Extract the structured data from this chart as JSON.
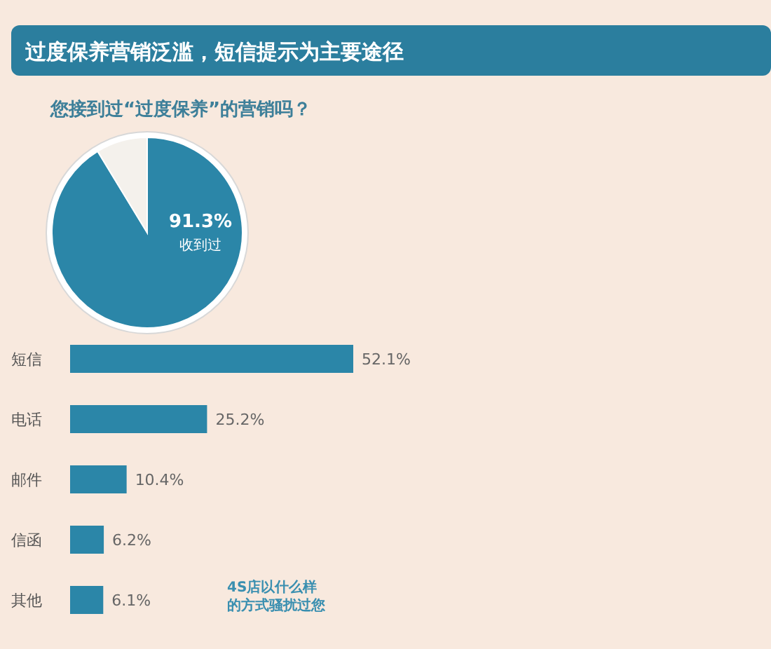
{
  "chart_data": [
    {
      "type": "pie",
      "title": "过度保养营销泛滥，短信提示为主要途径",
      "subtitle": "您接到过“过度保养”的营销吗？",
      "categories": [
        "收到过",
        null
      ],
      "values": [
        91.3,
        8.7
      ],
      "colors": [
        "#2b86a8",
        "#f4f1ec"
      ],
      "value_labels": [
        "91.3%",
        null
      ]
    },
    {
      "type": "bar",
      "orientation": "horizontal",
      "categories": [
        "短信",
        "电话",
        "邮件",
        "信函",
        "其他"
      ],
      "values": [
        52.1,
        25.2,
        10.4,
        6.2,
        6.1
      ],
      "color": "#2b86a8",
      "value_labels": [
        "52.1%",
        "25.2%",
        "10.4%",
        "6.2%",
        "6.1%"
      ],
      "annotations": [
        "4S店以什么样的方式骚扰过您"
      ]
    }
  ]
}
